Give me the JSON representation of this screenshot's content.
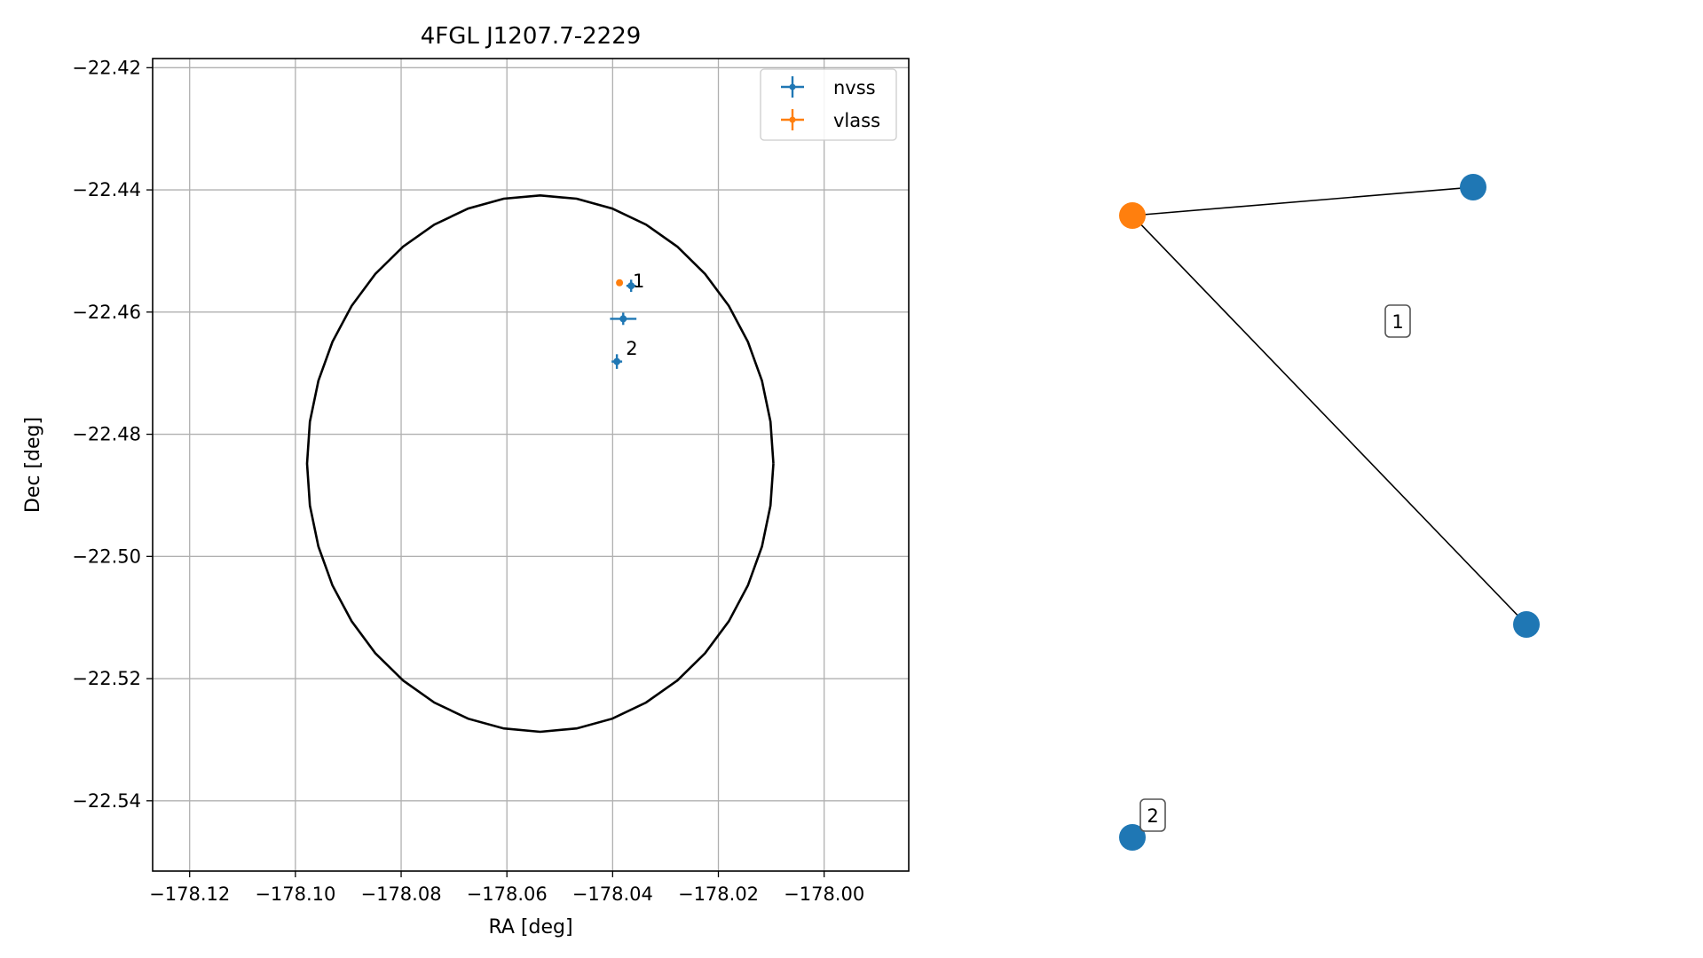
{
  "chart_data": [
    {
      "type": "scatter",
      "title": "4FGL J1207.7-2229",
      "xlabel": "RA [deg]",
      "ylabel": "Dec [deg]",
      "xlim": [
        -178.127,
        -177.984
      ],
      "ylim": [
        -22.5515,
        -22.4185
      ],
      "xticks": [
        -178.12,
        -178.1,
        -178.08,
        -178.06,
        -178.04,
        -178.02,
        -178.0
      ],
      "xtick_labels": [
        "−178.12",
        "−178.10",
        "−178.08",
        "−178.06",
        "−178.04",
        "−178.02",
        "−178.00"
      ],
      "yticks": [
        -22.42,
        -22.44,
        -22.46,
        -22.48,
        -22.5,
        -22.52,
        -22.54
      ],
      "ytick_labels": [
        "−22.42",
        "−22.44",
        "−22.46",
        "−22.48",
        "−22.50",
        "−22.52",
        "−22.54"
      ],
      "grid": true,
      "legend_position": "top-right",
      "ellipse": {
        "center": [
          -178.0537,
          -22.4848
        ],
        "ra_half_width": 0.0441,
        "dec_half_height": 0.0439,
        "color": "#000000"
      },
      "series": [
        {
          "name": "nvss",
          "color": "#1f77b4",
          "points": [
            {
              "x": -178.0365,
              "y": -22.4557,
              "xerr": 0.0009,
              "yerr": 0.001
            },
            {
              "x": -178.038,
              "y": -22.4611,
              "xerr": 0.0025,
              "yerr": 0.001
            },
            {
              "x": -178.0392,
              "y": -22.4681,
              "xerr": 0.001,
              "yerr": 0.0012
            }
          ]
        },
        {
          "name": "vlass",
          "color": "#ff7f0e",
          "points": [
            {
              "x": -178.0387,
              "y": -22.4552,
              "xerr": 0.0001,
              "yerr": 0.0001
            }
          ]
        }
      ],
      "annotations": [
        {
          "text": "1",
          "x": -178.0362,
          "y": -22.4551
        },
        {
          "text": "2",
          "x": -178.0375,
          "y": -22.4661
        }
      ]
    },
    {
      "type": "network",
      "nodes": [
        {
          "id": "vlass-node",
          "color": "#ff7f0e"
        },
        {
          "id": "nvss-node-top",
          "color": "#1f77b4"
        },
        {
          "id": "nvss-node-right",
          "color": "#1f77b4"
        },
        {
          "id": "nvss-node-bottom",
          "color": "#1f77b4"
        }
      ],
      "edges": [
        [
          "vlass-node",
          "nvss-node-top"
        ],
        [
          "vlass-node",
          "nvss-node-right"
        ]
      ],
      "labels": [
        {
          "text": "1"
        },
        {
          "text": "2"
        }
      ]
    }
  ]
}
